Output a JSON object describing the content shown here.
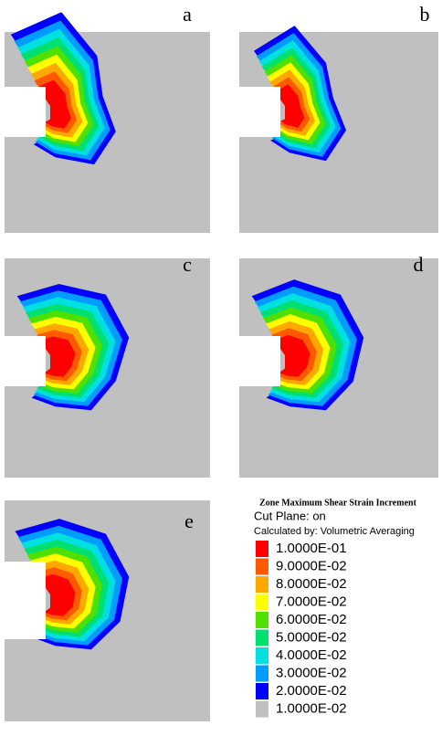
{
  "panels": [
    {
      "label": "a"
    },
    {
      "label": "b"
    },
    {
      "label": "c"
    },
    {
      "label": "d"
    },
    {
      "label": "e"
    }
  ],
  "legend": {
    "title": "Zone Maximum Shear Strain Increment",
    "line1": "Cut Plane: on",
    "line2": "Calculated by: Volumetric Averaging",
    "items": [
      {
        "label": "1.0000E-01",
        "color": "#ff0000"
      },
      {
        "label": "9.0000E-02",
        "color": "#ff5a00"
      },
      {
        "label": "8.0000E-02",
        "color": "#ffa800"
      },
      {
        "label": "7.0000E-02",
        "color": "#ffff00"
      },
      {
        "label": "6.0000E-02",
        "color": "#50e000"
      },
      {
        "label": "5.0000E-02",
        "color": "#00e070"
      },
      {
        "label": "4.0000E-02",
        "color": "#00e0e0"
      },
      {
        "label": "3.0000E-02",
        "color": "#009cff"
      },
      {
        "label": "2.0000E-02",
        "color": "#0000ff"
      },
      {
        "label": "1.0000E-02",
        "color": "#c0c0c0"
      }
    ]
  }
}
